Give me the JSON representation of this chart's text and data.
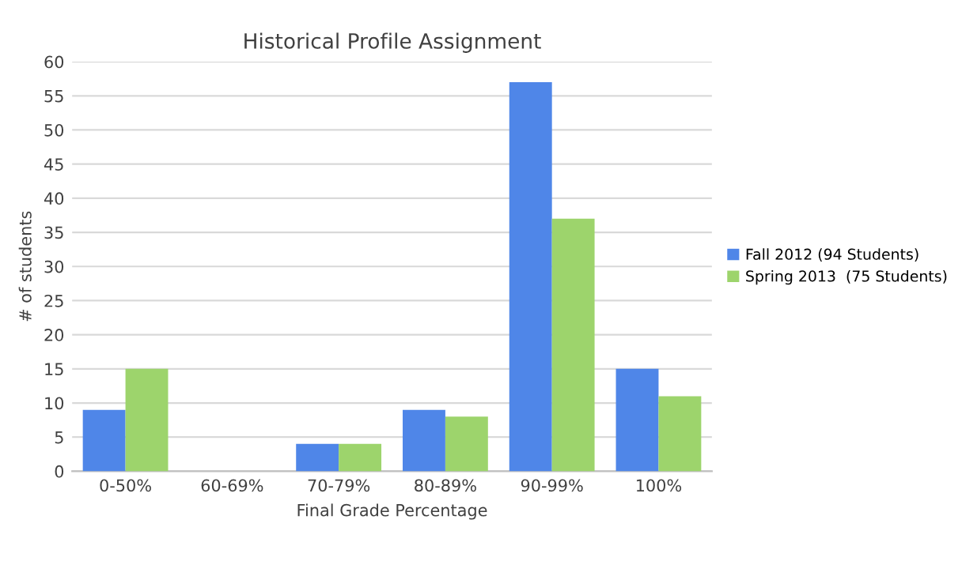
{
  "chart_data": {
    "type": "bar",
    "title": "Historical Profile Assignment",
    "xlabel": "Final Grade Percentage",
    "ylabel": "# of students",
    "categories": [
      "0-50%",
      "60-69%",
      "70-79%",
      "80-89%",
      "90-99%",
      "100%"
    ],
    "series": [
      {
        "name": "Fall 2012 (94 Students)",
        "color": "#4f86e8",
        "values": [
          9,
          0,
          4,
          9,
          57,
          15
        ]
      },
      {
        "name": "Spring 2013  (75 Students)",
        "color": "#9dd46c",
        "values": [
          15,
          0,
          4,
          8,
          37,
          11
        ]
      }
    ],
    "ylim": [
      0,
      60
    ],
    "yticks": [
      0,
      5,
      10,
      15,
      20,
      25,
      30,
      35,
      40,
      45,
      50,
      55,
      60
    ],
    "grid": "y",
    "legend": "right"
  }
}
